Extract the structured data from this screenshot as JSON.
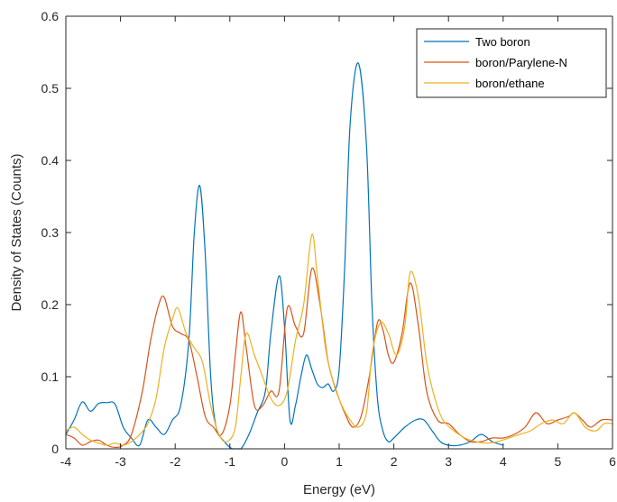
{
  "chart_data": {
    "type": "line",
    "title": "",
    "xlabel": "Energy (eV)",
    "ylabel": "Density of States (Counts)",
    "xlim": [
      -4,
      6
    ],
    "ylim": [
      0,
      0.6
    ],
    "xticks": [
      -4,
      -3,
      -2,
      -1,
      0,
      1,
      2,
      3,
      4,
      5,
      6
    ],
    "yticks": [
      0,
      0.1,
      0.2,
      0.3,
      0.4,
      0.5,
      0.6
    ],
    "xtick_labels": [
      "-4",
      "-3",
      "-2",
      "-1",
      "0",
      "1",
      "2",
      "3",
      "4",
      "5",
      "6"
    ],
    "ytick_labels": [
      "0",
      "0.1",
      "0.2",
      "0.3",
      "0.4",
      "0.5",
      "0.6"
    ],
    "grid": false,
    "legend_position": "top-right",
    "series": [
      {
        "name": "Two boron",
        "color": "#0072BD",
        "x": [
          -4.0,
          -3.85,
          -3.7,
          -3.55,
          -3.4,
          -3.25,
          -3.1,
          -2.95,
          -2.8,
          -2.65,
          -2.5,
          -2.35,
          -2.2,
          -2.05,
          -1.9,
          -1.75,
          -1.65,
          -1.55,
          -1.45,
          -1.35,
          -1.25,
          -1.1,
          -0.95,
          -0.8,
          -0.65,
          -0.5,
          -0.35,
          -0.25,
          -0.1,
          0.0,
          0.1,
          0.2,
          0.3,
          0.4,
          0.5,
          0.6,
          0.7,
          0.8,
          0.9,
          1.0,
          1.1,
          1.2,
          1.35,
          1.5,
          1.6,
          1.7,
          1.8,
          1.9,
          2.0,
          2.2,
          2.4,
          2.55,
          2.7,
          2.85,
          3.0,
          3.2,
          3.4,
          3.6,
          3.8,
          4.0
        ],
        "y": [
          0.02,
          0.04,
          0.065,
          0.052,
          0.063,
          0.064,
          0.062,
          0.03,
          0.015,
          0.005,
          0.04,
          0.03,
          0.02,
          0.04,
          0.06,
          0.15,
          0.3,
          0.365,
          0.27,
          0.1,
          0.03,
          0.01,
          0.0,
          0.0,
          0.02,
          0.05,
          0.08,
          0.16,
          0.24,
          0.17,
          0.04,
          0.06,
          0.1,
          0.13,
          0.11,
          0.09,
          0.085,
          0.09,
          0.08,
          0.11,
          0.25,
          0.45,
          0.535,
          0.42,
          0.2,
          0.07,
          0.025,
          0.01,
          0.015,
          0.03,
          0.04,
          0.04,
          0.025,
          0.01,
          0.005,
          0.005,
          0.01,
          0.02,
          0.01,
          0.005
        ]
      },
      {
        "name": "boron/Parylene-N",
        "color": "#D95319",
        "x": [
          -4.0,
          -3.85,
          -3.7,
          -3.55,
          -3.4,
          -3.25,
          -3.1,
          -2.95,
          -2.8,
          -2.6,
          -2.45,
          -2.3,
          -2.2,
          -2.05,
          -1.9,
          -1.75,
          -1.6,
          -1.45,
          -1.3,
          -1.15,
          -1.0,
          -0.9,
          -0.8,
          -0.7,
          -0.55,
          -0.4,
          -0.25,
          -0.1,
          0.05,
          0.2,
          0.35,
          0.5,
          0.65,
          0.8,
          0.95,
          1.1,
          1.25,
          1.4,
          1.55,
          1.7,
          1.8,
          1.9,
          2.0,
          2.15,
          2.3,
          2.45,
          2.6,
          2.8,
          3.0,
          3.2,
          3.4,
          3.6,
          3.8,
          4.0,
          4.2,
          4.4,
          4.6,
          4.8,
          5.0,
          5.2,
          5.3,
          5.45,
          5.6,
          5.8,
          6.0
        ],
        "y": [
          0.02,
          0.015,
          0.005,
          0.01,
          0.012,
          0.005,
          0.002,
          0.005,
          0.02,
          0.08,
          0.15,
          0.2,
          0.21,
          0.17,
          0.16,
          0.15,
          0.1,
          0.045,
          0.03,
          0.02,
          0.06,
          0.13,
          0.19,
          0.14,
          0.06,
          0.06,
          0.08,
          0.08,
          0.195,
          0.17,
          0.16,
          0.25,
          0.2,
          0.12,
          0.08,
          0.05,
          0.03,
          0.045,
          0.1,
          0.175,
          0.165,
          0.13,
          0.12,
          0.16,
          0.23,
          0.17,
          0.08,
          0.04,
          0.035,
          0.02,
          0.01,
          0.01,
          0.015,
          0.015,
          0.02,
          0.03,
          0.05,
          0.035,
          0.04,
          0.045,
          0.05,
          0.04,
          0.03,
          0.04,
          0.04
        ]
      },
      {
        "name": "boron/ethane",
        "color": "#EDB120",
        "x": [
          -4.0,
          -3.85,
          -3.7,
          -3.55,
          -3.4,
          -3.25,
          -3.1,
          -2.95,
          -2.8,
          -2.65,
          -2.5,
          -2.35,
          -2.2,
          -2.05,
          -1.95,
          -1.8,
          -1.65,
          -1.5,
          -1.35,
          -1.2,
          -1.05,
          -0.9,
          -0.8,
          -0.7,
          -0.55,
          -0.4,
          -0.25,
          -0.1,
          0.05,
          0.2,
          0.35,
          0.5,
          0.6,
          0.75,
          0.9,
          1.05,
          1.2,
          1.35,
          1.5,
          1.6,
          1.75,
          1.9,
          2.05,
          2.2,
          2.3,
          2.45,
          2.6,
          2.75,
          2.9,
          3.1,
          3.3,
          3.5,
          3.7,
          3.9,
          4.1,
          4.3,
          4.5,
          4.7,
          4.9,
          5.1,
          5.3,
          5.5,
          5.7,
          5.85,
          6.0
        ],
        "y": [
          0.025,
          0.03,
          0.02,
          0.012,
          0.008,
          0.005,
          0.008,
          0.005,
          0.01,
          0.02,
          0.035,
          0.07,
          0.14,
          0.18,
          0.195,
          0.16,
          0.14,
          0.12,
          0.06,
          0.02,
          0.01,
          0.03,
          0.1,
          0.16,
          0.13,
          0.1,
          0.07,
          0.06,
          0.08,
          0.15,
          0.2,
          0.297,
          0.24,
          0.14,
          0.09,
          0.06,
          0.04,
          0.03,
          0.05,
          0.13,
          0.175,
          0.16,
          0.13,
          0.17,
          0.245,
          0.21,
          0.12,
          0.07,
          0.04,
          0.025,
          0.015,
          0.01,
          0.008,
          0.01,
          0.015,
          0.02,
          0.025,
          0.035,
          0.04,
          0.035,
          0.05,
          0.03,
          0.025,
          0.035,
          0.035
        ]
      }
    ]
  }
}
